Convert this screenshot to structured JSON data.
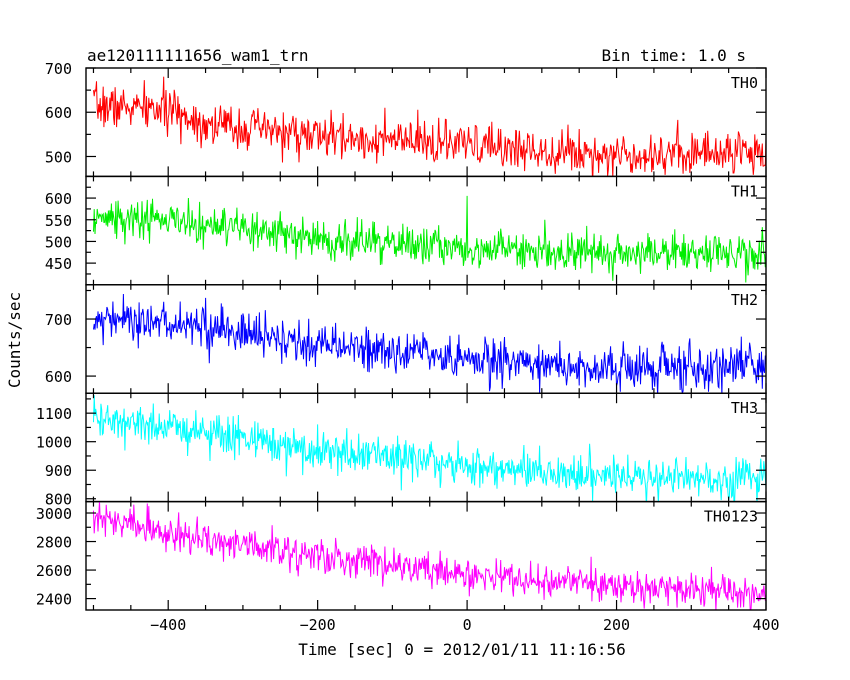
{
  "chart_data": {
    "type": "line",
    "title": "ae120111111656_wam1_trn",
    "subtitle": "Bin time: 1.0 s",
    "xlabel": "Time [sec] 0 = 2012/01/11 11:16:56",
    "ylabel": "Counts/sec",
    "xlim": [
      -510,
      400
    ],
    "x_ticks": [
      -400,
      -200,
      0,
      200,
      400
    ],
    "x_tick_labels": [
      "−400",
      "−200",
      "0",
      "200",
      "400"
    ],
    "x_minor_step": 50,
    "grid": false,
    "panels": [
      {
        "name": "TH0",
        "color": "#ff0000",
        "ylim": [
          455,
          700
        ],
        "y_ticks": [
          500,
          600,
          700
        ],
        "y_tick_labels": [
          "500",
          "600",
          "700"
        ],
        "trend": [
          [
            -500,
            615
          ],
          [
            -400,
            605
          ],
          [
            -350,
            575
          ],
          [
            -200,
            545
          ],
          [
            0,
            525
          ],
          [
            200,
            505
          ],
          [
            400,
            512
          ]
        ],
        "noise_sd": 24,
        "spikes": []
      },
      {
        "name": "TH1",
        "color": "#00ee00",
        "ylim": [
          400,
          650
        ],
        "y_ticks": [
          450,
          500,
          550,
          600
        ],
        "y_tick_labels": [
          "450",
          "500",
          "550",
          "600"
        ],
        "trend": [
          [
            -500,
            555
          ],
          [
            -400,
            550
          ],
          [
            -350,
            535
          ],
          [
            -200,
            505
          ],
          [
            0,
            485
          ],
          [
            200,
            475
          ],
          [
            400,
            470
          ]
        ],
        "noise_sd": 23,
        "spikes": [
          [
            0,
            605
          ]
        ]
      },
      {
        "name": "TH2",
        "color": "#0000ff",
        "ylim": [
          570,
          760
        ],
        "y_ticks": [
          600,
          700
        ],
        "y_tick_labels": [
          "600",
          "700"
        ],
        "trend": [
          [
            -500,
            702
          ],
          [
            -400,
            695
          ],
          [
            -300,
            675
          ],
          [
            -200,
            655
          ],
          [
            0,
            630
          ],
          [
            200,
            612
          ],
          [
            400,
            618
          ]
        ],
        "noise_sd": 19,
        "spikes": []
      },
      {
        "name": "TH3",
        "color": "#00ffff",
        "ylim": [
          790,
          1170
        ],
        "y_ticks": [
          800,
          900,
          1000,
          1100
        ],
        "y_tick_labels": [
          "800",
          "900",
          "1000",
          "1100"
        ],
        "trend": [
          [
            -500,
            1075
          ],
          [
            -400,
            1050
          ],
          [
            -300,
            1015
          ],
          [
            -200,
            970
          ],
          [
            0,
            915
          ],
          [
            200,
            880
          ],
          [
            400,
            870
          ]
        ],
        "noise_sd": 35,
        "spikes": []
      },
      {
        "name": "TH0123",
        "color": "#ff00ff",
        "ylim": [
          2320,
          3080
        ],
        "y_ticks": [
          2400,
          2600,
          2800,
          3000
        ],
        "y_tick_labels": [
          "2400",
          "2600",
          "2800",
          "3000"
        ],
        "trend": [
          [
            -500,
            2960
          ],
          [
            -400,
            2880
          ],
          [
            -350,
            2820
          ],
          [
            -200,
            2700
          ],
          [
            0,
            2570
          ],
          [
            200,
            2480
          ],
          [
            400,
            2450
          ]
        ],
        "noise_sd": 60,
        "spikes": []
      }
    ]
  }
}
